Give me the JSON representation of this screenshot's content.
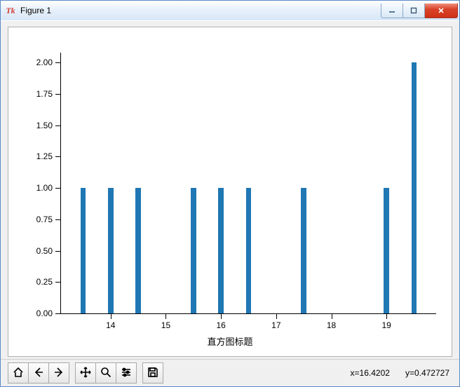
{
  "window": {
    "title": "Figure 1",
    "icon_text": "Tk"
  },
  "chart": {
    "type": "bar",
    "xlabel": "直方图标题",
    "xlim": [
      13.1,
      19.9
    ],
    "ylim": [
      0.0,
      2.08
    ],
    "xtick_start": 14,
    "xtick_step": 1,
    "xtick_end": 19,
    "yticks": [
      "0.00",
      "0.25",
      "0.50",
      "0.75",
      "1.00",
      "1.25",
      "1.50",
      "1.75",
      "2.00"
    ],
    "ytick_step": 0.25,
    "bar_color": "#1f77b4",
    "bar_width": 0.1,
    "bars": [
      {
        "x": 13.5,
        "y": 1.0
      },
      {
        "x": 14.0,
        "y": 1.0
      },
      {
        "x": 14.5,
        "y": 1.0
      },
      {
        "x": 15.5,
        "y": 1.0
      },
      {
        "x": 16.0,
        "y": 1.0
      },
      {
        "x": 16.5,
        "y": 1.0
      },
      {
        "x": 17.5,
        "y": 1.0
      },
      {
        "x": 19.0,
        "y": 1.0
      },
      {
        "x": 19.5,
        "y": 2.0
      }
    ],
    "background_color": "#ffffff",
    "axis_color": "#000000",
    "tick_fontsize": 12
  },
  "status": {
    "x_label": "x=16.4202",
    "y_label": "y=0.472727"
  }
}
